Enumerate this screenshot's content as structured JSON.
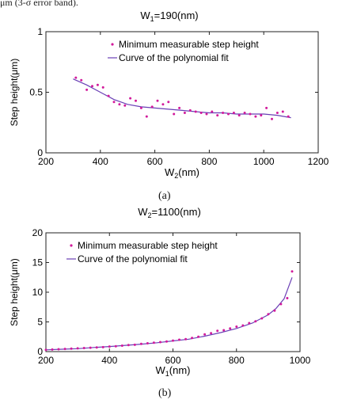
{
  "top_text": "μm (3-σ error band).",
  "captions": {
    "a": "(a)",
    "b": "(b)"
  },
  "colors": {
    "marker": "#d21a9b",
    "fit": "#6a3fb5",
    "axis": "#222222"
  },
  "chart_data": [
    {
      "type": "scatter",
      "title": "W₁=190(nm)",
      "title_main": "W",
      "title_sub": "1",
      "title_rest": "=190(nm)",
      "xlabel": "W₂(nm)",
      "xlabel_main": "W",
      "xlabel_sub": "2",
      "xlabel_rest": "(nm)",
      "ylabel": "Step height(μm)",
      "xlim": [
        200,
        1200
      ],
      "ylim": [
        0,
        1
      ],
      "xticks": [
        200,
        400,
        600,
        800,
        1000,
        1200
      ],
      "yticks": [
        0,
        0.5,
        1
      ],
      "xtick_labels": [
        "200",
        "400",
        "600",
        "800",
        "1000",
        "1200"
      ],
      "ytick_labels": [
        "0",
        "0.5",
        "1"
      ],
      "legend": {
        "position": "top-right",
        "entries": [
          "Minimum measurable step height",
          "Curve of the polynomial fit"
        ]
      },
      "series": [
        {
          "name": "Minimum measurable step height",
          "kind": "scatter",
          "x": [
            310,
            330,
            350,
            370,
            390,
            410,
            430,
            450,
            470,
            490,
            510,
            530,
            550,
            570,
            590,
            610,
            630,
            650,
            670,
            690,
            710,
            730,
            750,
            770,
            790,
            810,
            830,
            850,
            870,
            890,
            910,
            930,
            950,
            970,
            990,
            1010,
            1030,
            1050,
            1070,
            1090
          ],
          "y": [
            0.62,
            0.6,
            0.52,
            0.55,
            0.56,
            0.54,
            0.47,
            0.42,
            0.4,
            0.39,
            0.45,
            0.43,
            0.37,
            0.3,
            0.38,
            0.43,
            0.4,
            0.42,
            0.32,
            0.37,
            0.33,
            0.35,
            0.34,
            0.33,
            0.32,
            0.34,
            0.31,
            0.33,
            0.32,
            0.33,
            0.31,
            0.33,
            0.32,
            0.3,
            0.31,
            0.37,
            0.28,
            0.33,
            0.34,
            0.3
          ]
        },
        {
          "name": "Curve of the polynomial fit",
          "kind": "line",
          "x": [
            300,
            350,
            400,
            450,
            500,
            550,
            600,
            650,
            700,
            750,
            800,
            850,
            900,
            950,
            1000,
            1050,
            1100
          ],
          "y": [
            0.61,
            0.56,
            0.5,
            0.44,
            0.4,
            0.38,
            0.37,
            0.36,
            0.35,
            0.34,
            0.33,
            0.33,
            0.32,
            0.32,
            0.32,
            0.31,
            0.29
          ]
        }
      ]
    },
    {
      "type": "scatter",
      "title": "W₂=1100(nm)",
      "title_main": "W",
      "title_sub": "2",
      "title_rest": "=1100(nm)",
      "xlabel": "W₁(nm)",
      "xlabel_main": "W",
      "xlabel_sub": "1",
      "xlabel_rest": "(nm)",
      "ylabel": "Step height(μm)",
      "xlim": [
        200,
        1000
      ],
      "ylim": [
        0,
        20
      ],
      "xticks": [
        200,
        400,
        600,
        800,
        1000
      ],
      "yticks": [
        0,
        5,
        10,
        15,
        20
      ],
      "xtick_labels": [
        "200",
        "400",
        "600",
        "800",
        "1000"
      ],
      "ytick_labels": [
        "0",
        "5",
        "10",
        "15",
        "20"
      ],
      "legend": {
        "position": "top-left",
        "entries": [
          "Minimum measurable step height",
          "Curve of the polynomial fit"
        ]
      },
      "series": [
        {
          "name": "Minimum measurable step height",
          "kind": "scatter",
          "x": [
            200,
            220,
            240,
            260,
            280,
            300,
            320,
            340,
            360,
            380,
            400,
            420,
            440,
            460,
            480,
            500,
            520,
            540,
            560,
            580,
            600,
            620,
            640,
            660,
            680,
            700,
            720,
            740,
            760,
            780,
            800,
            820,
            840,
            860,
            880,
            900,
            920,
            940,
            960,
            975
          ],
          "y": [
            0.3,
            0.35,
            0.4,
            0.45,
            0.5,
            0.55,
            0.6,
            0.65,
            0.7,
            0.75,
            0.85,
            0.9,
            1.0,
            1.1,
            1.15,
            1.3,
            1.4,
            1.5,
            1.6,
            1.7,
            1.85,
            2.0,
            2.1,
            2.3,
            2.5,
            2.9,
            3.1,
            3.5,
            3.6,
            3.9,
            4.2,
            4.4,
            4.8,
            5.1,
            5.6,
            6.3,
            6.9,
            8.0,
            9.0,
            13.5
          ]
        },
        {
          "name": "Curve of the polynomial fit",
          "kind": "line",
          "x": [
            200,
            250,
            300,
            350,
            400,
            450,
            500,
            550,
            600,
            650,
            700,
            750,
            800,
            850,
            900,
            925,
            950,
            975
          ],
          "y": [
            0.3,
            0.4,
            0.5,
            0.7,
            0.85,
            1.05,
            1.25,
            1.5,
            1.8,
            2.1,
            2.6,
            3.2,
            3.9,
            4.8,
            6.2,
            7.3,
            8.9,
            12.5
          ]
        }
      ]
    }
  ]
}
